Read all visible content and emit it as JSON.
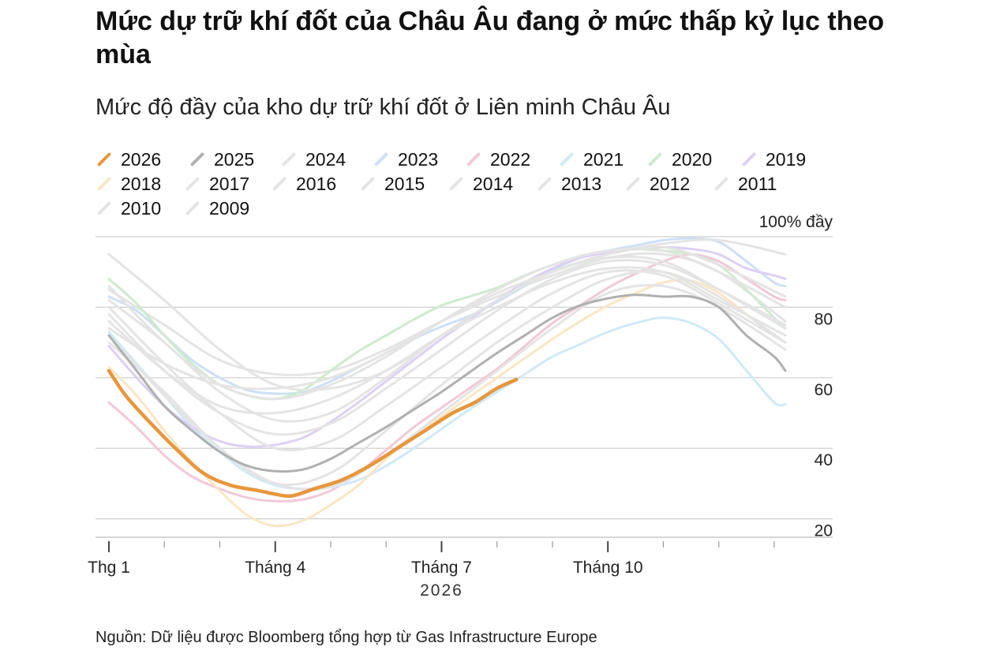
{
  "title": "Mức dự trữ khí đốt của Châu Âu đang ở mức thấp kỷ lục theo mùa",
  "subtitle": "Mức độ đầy của kho dự trữ khí đốt ở Liên minh Châu Âu",
  "source": "Nguồn: Dữ liệu được Bloomberg tổng hợp từ Gas Infrastructure Europe",
  "colors": {
    "highlight": "#e8963c",
    "previous": "#b0b0b0",
    "faded_gray": "#e4e4e4",
    "grid": "#cfcfcf"
  },
  "chart_data": {
    "type": "line",
    "title": "Mức độ đầy của kho dự trữ khí đốt ở Liên minh Châu Âu",
    "xlabel": "2026",
    "ylabel": "",
    "x_ticks": [
      "Thg 1",
      "Tháng 4",
      "Tháng 7",
      "Tháng 10"
    ],
    "x_tick_months": [
      1,
      4,
      7,
      10
    ],
    "xlim_month": [
      1,
      13.3
    ],
    "ylim": [
      15,
      100
    ],
    "y_ticks": [
      {
        "value": 20,
        "label": "20"
      },
      {
        "value": 40,
        "label": "40"
      },
      {
        "value": 60,
        "label": "60"
      },
      {
        "value": 80,
        "label": "80"
      },
      {
        "value": 100,
        "label": "100% đầy"
      }
    ],
    "grid": true,
    "legend_position": "top",
    "series": [
      {
        "name": "2026",
        "color": "#e8963c",
        "x_month": [
          1,
          1.3,
          1.7,
          2.2,
          2.7,
          3.2,
          3.7,
          4.0,
          4.3,
          4.7,
          5.2,
          5.7,
          6.2,
          6.7,
          7.2,
          7.6,
          8.0,
          8.35
        ],
        "y": [
          62,
          55,
          48,
          40,
          33,
          29.5,
          28,
          27,
          26.5,
          28.5,
          31,
          35,
          40,
          45,
          50,
          53,
          57,
          59.5
        ]
      },
      {
        "name": "2025",
        "color": "#b0b0b0",
        "x_month": [
          1,
          1.5,
          2.0,
          2.5,
          3.0,
          3.5,
          4.0,
          4.5,
          5.0,
          5.5,
          6.0,
          6.5,
          7.0,
          7.5,
          8.0,
          8.5,
          9.0,
          9.5,
          10.0,
          10.5,
          11.0,
          11.5,
          12.0,
          12.5,
          13.0,
          13.2
        ],
        "y": [
          72,
          62,
          52,
          45,
          39,
          35,
          33.5,
          34,
          37,
          41.5,
          46,
          51,
          56,
          61.5,
          67,
          72,
          77,
          80.5,
          82.5,
          83.5,
          83,
          83,
          80,
          72,
          66,
          62
        ]
      },
      {
        "name": "2024",
        "color": "#e4e4e4",
        "x_month": [
          1,
          2,
          3,
          4,
          5,
          6,
          7,
          8,
          9,
          10,
          11,
          12,
          13.2
        ],
        "y": [
          85,
          75,
          65,
          61,
          62,
          68,
          76,
          83,
          89,
          94,
          95,
          90,
          76
        ]
      },
      {
        "name": "2023",
        "color": "#cde0f6",
        "x_month": [
          1,
          1.5,
          2,
          2.5,
          3,
          3.5,
          4,
          4.5,
          5,
          5.5,
          6,
          6.5,
          7,
          7.5,
          8,
          8.5,
          9,
          9.5,
          10,
          10.5,
          11,
          11.5,
          12,
          12.5,
          13,
          13.2
        ],
        "y": [
          83,
          79,
          72,
          65,
          60,
          56.5,
          55.5,
          56,
          59,
          63,
          67,
          71,
          74.5,
          77.5,
          81.5,
          86,
          90.5,
          94,
          96,
          97.5,
          99,
          99.5,
          98.5,
          93,
          87,
          86
        ]
      },
      {
        "name": "2022",
        "color": "#f2c8d8",
        "x_month": [
          1,
          1.5,
          2,
          2.5,
          3,
          3.5,
          4,
          4.5,
          5,
          5.5,
          6,
          6.5,
          7,
          7.5,
          8,
          8.5,
          9,
          9.5,
          10,
          10.5,
          11,
          11.5,
          12,
          12.5,
          13,
          13.2
        ],
        "y": [
          53,
          46,
          38,
          32,
          28.5,
          26,
          25,
          25.5,
          28,
          33,
          39.5,
          46,
          51.5,
          57,
          62.5,
          69,
          75.5,
          80.5,
          85.5,
          89.5,
          93,
          95,
          93,
          88,
          83,
          82
        ]
      },
      {
        "name": "2021",
        "color": "#cfeaf7",
        "x_month": [
          1,
          1.5,
          2,
          2.5,
          3,
          3.5,
          4,
          4.5,
          5,
          5.5,
          6,
          6.5,
          7,
          7.5,
          8,
          8.5,
          9,
          9.5,
          10,
          10.5,
          11,
          11.5,
          12,
          12.5,
          13,
          13.2
        ],
        "y": [
          73,
          64,
          55,
          46,
          39,
          33,
          29.5,
          28.5,
          29,
          31,
          35,
          40,
          45.5,
          51,
          56,
          61,
          66,
          69.5,
          73,
          75.5,
          77,
          75.5,
          71,
          62,
          53,
          52.5
        ]
      },
      {
        "name": "2020",
        "color": "#cdebcd",
        "x_month": [
          1,
          1.5,
          2,
          2.5,
          3,
          3.5,
          4,
          4.5,
          5,
          5.5,
          6,
          6.5,
          7,
          7.5,
          8,
          8.5,
          9,
          9.5,
          10,
          10.5,
          11,
          11.5,
          12,
          12.5,
          13,
          13.2
        ],
        "y": [
          88,
          81,
          72,
          64,
          58,
          55,
          54,
          56.5,
          62,
          67.5,
          72,
          76.5,
          80.5,
          83,
          85.5,
          89,
          92,
          94.5,
          96,
          96.5,
          96,
          95,
          92,
          85,
          77,
          74
        ]
      },
      {
        "name": "2019",
        "color": "#ddd0f4",
        "x_month": [
          1,
          1.5,
          2,
          2.5,
          3,
          3.5,
          4,
          4.5,
          5,
          5.5,
          6,
          6.5,
          7,
          7.5,
          8,
          8.5,
          9,
          9.5,
          10,
          10.5,
          11,
          11.5,
          12,
          12.5,
          13,
          13.2
        ],
        "y": [
          69,
          60,
          52,
          46,
          42,
          40.5,
          41,
          43,
          47.5,
          53,
          59,
          65,
          71,
          76.5,
          82,
          87,
          91,
          94,
          95.5,
          96.5,
          97,
          96.5,
          95,
          91,
          89,
          88
        ]
      },
      {
        "name": "2018",
        "color": "#fae6c4",
        "x_month": [
          1,
          1.5,
          2,
          2.5,
          3,
          3.5,
          4,
          4.5,
          5,
          5.5,
          6,
          6.5,
          7,
          7.5,
          8,
          8.5,
          9,
          9.5,
          10,
          10.5,
          11,
          11.5,
          12,
          12.5,
          13,
          13.2
        ],
        "y": [
          63,
          55,
          45,
          36,
          28,
          21,
          18,
          19.5,
          24,
          29.5,
          37,
          43.5,
          49,
          54.5,
          60,
          65.5,
          71,
          76,
          80.5,
          84,
          87,
          87.5,
          84,
          78,
          72,
          70
        ]
      },
      {
        "name": "2017",
        "color": "#e4e4e4",
        "x_month": [
          1,
          2,
          3,
          4,
          5,
          6,
          7,
          8,
          9,
          10,
          11,
          12,
          13.2
        ],
        "y": [
          70,
          56,
          40,
          30,
          33,
          45,
          58,
          70,
          80,
          88,
          90,
          83,
          70
        ]
      },
      {
        "name": "2016",
        "color": "#e4e4e4",
        "x_month": [
          1,
          2,
          3,
          4,
          5,
          6,
          7,
          8,
          9,
          10,
          11,
          12,
          13.2
        ],
        "y": [
          78,
          62,
          50,
          44,
          47,
          57,
          68,
          79,
          88,
          93,
          92,
          85,
          75
        ]
      },
      {
        "name": "2015",
        "color": "#e4e4e4",
        "x_month": [
          1,
          2,
          3,
          4,
          5,
          6,
          7,
          8,
          9,
          10,
          11,
          12,
          13.2
        ],
        "y": [
          80,
          64,
          50,
          40,
          42,
          52,
          63,
          74,
          84,
          90,
          89,
          81,
          70
        ]
      },
      {
        "name": "2014",
        "color": "#e4e4e4",
        "x_month": [
          1,
          2,
          3,
          4,
          5,
          6,
          7,
          8,
          9,
          10,
          11,
          12,
          13.2
        ],
        "y": [
          95,
          82,
          68,
          58,
          57,
          62,
          72,
          82,
          90,
          95,
          97,
          92,
          83
        ]
      },
      {
        "name": "2013",
        "color": "#e4e4e4",
        "x_month": [
          1,
          2,
          3,
          4,
          5,
          6,
          7,
          8,
          9,
          10,
          11,
          12,
          13.2
        ],
        "y": [
          72,
          55,
          40,
          30,
          29,
          38,
          50,
          62,
          74,
          84,
          86,
          80,
          68
        ]
      },
      {
        "name": "2012",
        "color": "#e4e4e4",
        "x_month": [
          1,
          2,
          3,
          4,
          5,
          6,
          7,
          8,
          9,
          10,
          11,
          12,
          13.2
        ],
        "y": [
          82,
          70,
          56,
          48,
          50,
          60,
          72,
          82,
          90,
          94,
          93,
          85,
          74
        ]
      },
      {
        "name": "2011",
        "color": "#e4e4e4",
        "x_month": [
          1,
          2,
          3,
          4,
          5,
          6,
          7,
          8,
          9,
          10,
          11,
          12,
          13.2
        ],
        "y": [
          76,
          62,
          52,
          50,
          54,
          62,
          72,
          80,
          87,
          91,
          90,
          82,
          72
        ]
      },
      {
        "name": "2010",
        "color": "#e4e4e4",
        "x_month": [
          1,
          2,
          3,
          4,
          5,
          6,
          7,
          8,
          9,
          10,
          11,
          12,
          13.2
        ],
        "y": [
          86,
          70,
          58,
          54,
          58,
          66,
          76,
          85,
          92,
          96,
          96,
          90,
          80
        ]
      },
      {
        "name": "2009",
        "color": "#e4e4e4",
        "x_month": [
          1,
          2,
          3,
          4,
          5,
          6,
          7,
          8,
          9,
          10,
          11,
          12,
          13.2
        ],
        "y": [
          74,
          64,
          58,
          57,
          60,
          67,
          76,
          84,
          90,
          95,
          98,
          99,
          95
        ]
      }
    ]
  }
}
